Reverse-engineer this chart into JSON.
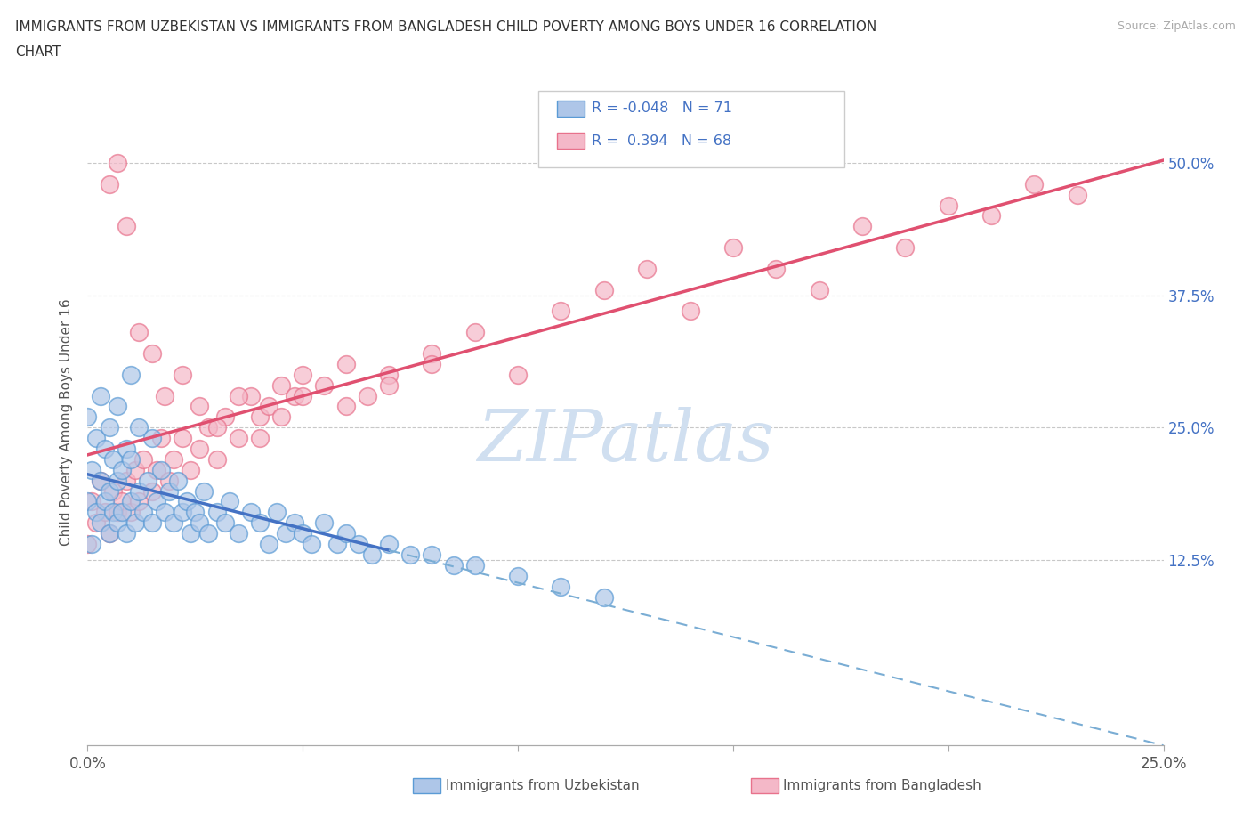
{
  "title_line1": "IMMIGRANTS FROM UZBEKISTAN VS IMMIGRANTS FROM BANGLADESH CHILD POVERTY AMONG BOYS UNDER 16 CORRELATION",
  "title_line2": "CHART",
  "source": "Source: ZipAtlas.com",
  "ylabel": "Child Poverty Among Boys Under 16",
  "xlim": [
    0.0,
    0.25
  ],
  "ylim": [
    -0.05,
    0.56
  ],
  "x_ticks": [
    0.0,
    0.05,
    0.1,
    0.15,
    0.2,
    0.25
  ],
  "x_tick_labels": [
    "0.0%",
    "",
    "",
    "",
    "",
    "25.0%"
  ],
  "y_ticks_right": [
    0.0,
    0.125,
    0.25,
    0.375,
    0.5
  ],
  "y_tick_labels_right": [
    "",
    "12.5%",
    "25.0%",
    "37.5%",
    "50.0%"
  ],
  "color_uzbekistan_fill": "#aec6e8",
  "color_uzbekistan_edge": "#5b9bd5",
  "color_bangladesh_fill": "#f4b8c8",
  "color_bangladesh_edge": "#e8728c",
  "color_line_uzbekistan_solid": "#4472c4",
  "color_line_uzbekistan_dash": "#7aadd4",
  "color_line_bangladesh": "#e05070",
  "color_text_blue": "#4472c4",
  "color_grid": "#c8c8c8",
  "watermark_color": "#d0dff0",
  "legend_r1": "R = -0.048",
  "legend_n1": "N = 71",
  "legend_r2": "R =  0.394",
  "legend_n2": "N = 68",
  "uz_x": [
    0.0,
    0.0,
    0.001,
    0.001,
    0.002,
    0.002,
    0.003,
    0.003,
    0.003,
    0.004,
    0.004,
    0.005,
    0.005,
    0.005,
    0.006,
    0.006,
    0.007,
    0.007,
    0.007,
    0.008,
    0.008,
    0.009,
    0.009,
    0.01,
    0.01,
    0.01,
    0.011,
    0.012,
    0.012,
    0.013,
    0.014,
    0.015,
    0.015,
    0.016,
    0.017,
    0.018,
    0.019,
    0.02,
    0.021,
    0.022,
    0.023,
    0.024,
    0.025,
    0.026,
    0.027,
    0.028,
    0.03,
    0.032,
    0.033,
    0.035,
    0.038,
    0.04,
    0.042,
    0.044,
    0.046,
    0.048,
    0.05,
    0.052,
    0.055,
    0.058,
    0.06,
    0.063,
    0.066,
    0.07,
    0.075,
    0.08,
    0.085,
    0.09,
    0.1,
    0.11,
    0.12
  ],
  "uz_y": [
    0.18,
    0.26,
    0.14,
    0.21,
    0.17,
    0.24,
    0.16,
    0.2,
    0.28,
    0.18,
    0.23,
    0.15,
    0.19,
    0.25,
    0.17,
    0.22,
    0.16,
    0.2,
    0.27,
    0.17,
    0.21,
    0.15,
    0.23,
    0.18,
    0.22,
    0.3,
    0.16,
    0.19,
    0.25,
    0.17,
    0.2,
    0.16,
    0.24,
    0.18,
    0.21,
    0.17,
    0.19,
    0.16,
    0.2,
    0.17,
    0.18,
    0.15,
    0.17,
    0.16,
    0.19,
    0.15,
    0.17,
    0.16,
    0.18,
    0.15,
    0.17,
    0.16,
    0.14,
    0.17,
    0.15,
    0.16,
    0.15,
    0.14,
    0.16,
    0.14,
    0.15,
    0.14,
    0.13,
    0.14,
    0.13,
    0.13,
    0.12,
    0.12,
    0.11,
    0.1,
    0.09
  ],
  "bd_x": [
    0.0,
    0.001,
    0.002,
    0.003,
    0.004,
    0.005,
    0.006,
    0.007,
    0.008,
    0.009,
    0.01,
    0.011,
    0.012,
    0.013,
    0.015,
    0.016,
    0.017,
    0.019,
    0.02,
    0.022,
    0.024,
    0.026,
    0.028,
    0.03,
    0.032,
    0.035,
    0.038,
    0.04,
    0.042,
    0.045,
    0.048,
    0.05,
    0.055,
    0.06,
    0.065,
    0.07,
    0.08,
    0.09,
    0.1,
    0.11,
    0.12,
    0.13,
    0.14,
    0.15,
    0.16,
    0.17,
    0.18,
    0.19,
    0.2,
    0.21,
    0.22,
    0.23,
    0.005,
    0.007,
    0.009,
    0.012,
    0.015,
    0.018,
    0.022,
    0.026,
    0.03,
    0.035,
    0.04,
    0.045,
    0.05,
    0.06,
    0.07,
    0.08
  ],
  "bd_y": [
    0.14,
    0.18,
    0.16,
    0.2,
    0.17,
    0.15,
    0.19,
    0.17,
    0.18,
    0.2,
    0.17,
    0.21,
    0.18,
    0.22,
    0.19,
    0.21,
    0.24,
    0.2,
    0.22,
    0.24,
    0.21,
    0.23,
    0.25,
    0.22,
    0.26,
    0.24,
    0.28,
    0.26,
    0.27,
    0.29,
    0.28,
    0.3,
    0.29,
    0.31,
    0.28,
    0.3,
    0.32,
    0.34,
    0.3,
    0.36,
    0.38,
    0.4,
    0.36,
    0.42,
    0.4,
    0.38,
    0.44,
    0.42,
    0.46,
    0.45,
    0.48,
    0.47,
    0.48,
    0.5,
    0.44,
    0.34,
    0.32,
    0.28,
    0.3,
    0.27,
    0.25,
    0.28,
    0.24,
    0.26,
    0.28,
    0.27,
    0.29,
    0.31
  ]
}
